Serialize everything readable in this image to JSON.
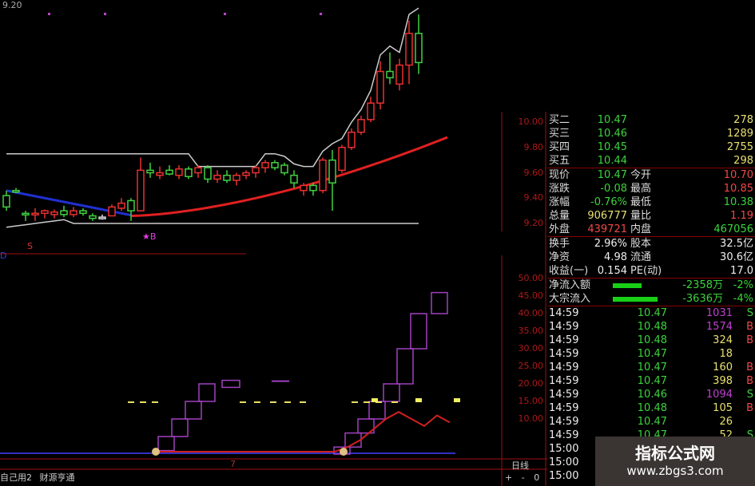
{
  "header": {
    "top_price": "9.20",
    "last_high": "10.8"
  },
  "price_axis": [
    "10.00",
    "9.80",
    "9.60",
    "9.40",
    "9.20"
  ],
  "indicator_axis": [
    "50.00",
    "45.00",
    "40.00",
    "35.00",
    "30.00",
    "25.00",
    "20.00",
    "15.00",
    "10.00"
  ],
  "markers": {
    "buy": "★B",
    "sell": "S",
    "low_marker": "D",
    "sub_marker": "7"
  },
  "candles": [
    [
      9.42,
      9.46,
      9.3,
      9.33
    ],
    [
      9.46,
      9.48,
      9.44,
      9.45
    ],
    [
      9.28,
      9.3,
      9.22,
      9.27
    ],
    [
      9.27,
      9.32,
      9.22,
      9.28
    ],
    [
      9.28,
      9.31,
      9.24,
      9.3
    ],
    [
      9.27,
      9.31,
      9.24,
      9.29
    ],
    [
      9.3,
      9.34,
      9.25,
      9.27
    ],
    [
      9.27,
      9.33,
      9.25,
      9.3
    ],
    [
      9.3,
      9.32,
      9.26,
      9.28
    ],
    [
      9.26,
      9.28,
      9.22,
      9.24
    ],
    [
      9.25,
      9.27,
      9.23,
      9.25
    ],
    [
      9.26,
      9.35,
      9.26,
      9.33
    ],
    [
      9.32,
      9.4,
      9.3,
      9.36
    ],
    [
      9.38,
      9.4,
      9.22,
      9.3
    ],
    [
      9.3,
      9.72,
      9.3,
      9.62
    ],
    [
      9.62,
      9.68,
      9.56,
      9.6
    ],
    [
      9.58,
      9.65,
      9.55,
      9.6
    ],
    [
      9.62,
      9.66,
      9.58,
      9.59
    ],
    [
      9.58,
      9.66,
      9.55,
      9.63
    ],
    [
      9.63,
      9.65,
      9.55,
      9.57
    ],
    [
      9.6,
      9.66,
      9.56,
      9.64
    ],
    [
      9.64,
      9.66,
      9.52,
      9.55
    ],
    [
      9.55,
      9.62,
      9.52,
      9.58
    ],
    [
      9.58,
      9.62,
      9.52,
      9.54
    ],
    [
      9.54,
      9.6,
      9.5,
      9.58
    ],
    [
      9.58,
      9.62,
      9.55,
      9.6
    ],
    [
      9.6,
      9.66,
      9.56,
      9.64
    ],
    [
      9.64,
      9.7,
      9.6,
      9.68
    ],
    [
      9.68,
      9.7,
      9.62,
      9.64
    ],
    [
      9.66,
      9.68,
      9.58,
      9.6
    ],
    [
      9.58,
      9.62,
      9.48,
      9.52
    ],
    [
      9.46,
      9.52,
      9.42,
      9.5
    ],
    [
      9.5,
      9.52,
      9.42,
      9.46
    ],
    [
      9.46,
      9.72,
      9.44,
      9.7
    ],
    [
      9.7,
      9.78,
      9.3,
      9.52
    ],
    [
      9.62,
      9.82,
      9.6,
      9.8
    ],
    [
      9.8,
      9.95,
      9.78,
      9.92
    ],
    [
      9.92,
      10.05,
      9.9,
      10.02
    ],
    [
      10.02,
      10.2,
      10.0,
      10.15
    ],
    [
      10.15,
      10.48,
      10.1,
      10.4
    ],
    [
      10.4,
      10.55,
      10.3,
      10.35
    ],
    [
      10.3,
      10.5,
      10.25,
      10.45
    ],
    [
      10.45,
      10.8,
      10.3,
      10.7
    ],
    [
      10.7,
      10.85,
      10.38,
      10.47
    ]
  ],
  "indicator": {
    "boxes": [
      [
        1,
        5
      ],
      [
        5,
        10
      ],
      [
        10,
        15
      ],
      [
        15,
        20
      ],
      [
        19,
        21
      ],
      [
        0,
        2
      ],
      [
        2,
        6
      ],
      [
        6,
        10
      ],
      [
        10,
        15
      ],
      [
        15,
        20
      ],
      [
        20,
        30
      ],
      [
        30,
        40
      ],
      [
        40,
        46
      ],
      [
        46,
        52
      ]
    ],
    "red_line": [
      1,
      1,
      1,
      1,
      1,
      1,
      1,
      1,
      1,
      1,
      1,
      1,
      1,
      1,
      1,
      2,
      4,
      7,
      10,
      12,
      10,
      8,
      11,
      9
    ],
    "yellow_level": 15
  },
  "order_book": [
    {
      "label": "买二",
      "price": "10.47",
      "vol": "278"
    },
    {
      "label": "买三",
      "price": "10.46",
      "vol": "1289"
    },
    {
      "label": "买四",
      "price": "10.45",
      "vol": "2755"
    },
    {
      "label": "买五",
      "price": "10.44",
      "vol": "298"
    }
  ],
  "quote": [
    {
      "l1": "现价",
      "v1": "10.47",
      "c1": "g",
      "l2": "今开",
      "v2": "10.70",
      "c2": "r"
    },
    {
      "l1": "涨跌",
      "v1": "-0.08",
      "c1": "g",
      "l2": "最高",
      "v2": "10.85",
      "c2": "r"
    },
    {
      "l1": "涨幅",
      "v1": "-0.76%",
      "c1": "g",
      "l2": "最低",
      "v2": "10.38",
      "c2": "g"
    },
    {
      "l1": "总量",
      "v1": "906777",
      "c1": "y",
      "l2": "量比",
      "v2": "1.19",
      "c2": "r"
    },
    {
      "l1": "外盘",
      "v1": "439721",
      "c1": "r",
      "l2": "内盘",
      "v2": "467056",
      "c2": "g"
    }
  ],
  "fundamentals": [
    {
      "l1": "换手",
      "v1": "2.96%",
      "l2": "股本",
      "v2": "32.5亿"
    },
    {
      "l1": "净资",
      "v1": "4.98",
      "l2": "流通",
      "v2": "30.6亿"
    },
    {
      "l1": "收益(一)",
      "v1": "0.154",
      "l2": "PE(动)",
      "v2": "17.0"
    }
  ],
  "flows": [
    {
      "label": "净流入额",
      "value": "-2358万",
      "pct": "-2%",
      "bar": 0.45
    },
    {
      "label": "大宗流入",
      "value": "-3636万",
      "pct": "-4%",
      "bar": 0.7
    }
  ],
  "ticks": [
    {
      "t": "14:59",
      "p": "10.47",
      "v": "1031",
      "vc": "m",
      "s": "S"
    },
    {
      "t": "14:59",
      "p": "10.48",
      "v": "1574",
      "vc": "m",
      "s": "B"
    },
    {
      "t": "14:59",
      "p": "10.48",
      "v": "324",
      "vc": "y",
      "s": "B"
    },
    {
      "t": "14:59",
      "p": "10.47",
      "v": "18",
      "vc": "y",
      "s": ""
    },
    {
      "t": "14:59",
      "p": "10.47",
      "v": "160",
      "vc": "y",
      "s": "B"
    },
    {
      "t": "14:59",
      "p": "10.47",
      "v": "398",
      "vc": "y",
      "s": "B"
    },
    {
      "t": "14:59",
      "p": "10.46",
      "v": "1094",
      "vc": "m",
      "s": "S"
    },
    {
      "t": "14:59",
      "p": "10.48",
      "v": "105",
      "vc": "y",
      "s": "B"
    },
    {
      "t": "14:59",
      "p": "10.47",
      "v": "26",
      "vc": "y",
      "s": ""
    },
    {
      "t": "14:59",
      "p": "10.47",
      "v": "52",
      "vc": "y",
      "s": "S"
    },
    {
      "t": "15:00",
      "p": "",
      "v": "",
      "vc": "y",
      "s": ""
    },
    {
      "t": "15:00",
      "p": "",
      "v": "",
      "vc": "y",
      "s": ""
    },
    {
      "t": "15:00",
      "p": "",
      "v": "",
      "vc": "y",
      "s": ""
    }
  ],
  "bottom": {
    "tabs": [
      "自己用2",
      "财源亨通"
    ],
    "period": "日线",
    "zoom_in": "+",
    "zoom_out": "-",
    "reset": "0"
  },
  "watermark": {
    "title": "指标公式网",
    "url": "www.zbgs3.com"
  }
}
